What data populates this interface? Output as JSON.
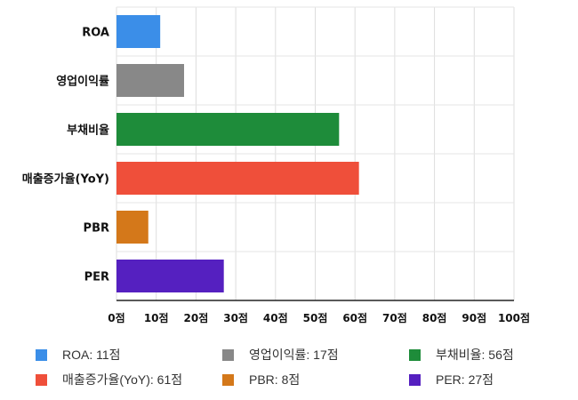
{
  "chart_data": {
    "type": "bar",
    "orientation": "horizontal",
    "categories": [
      "ROA",
      "영업이익률",
      "부채비율",
      "매출증가율(YoY)",
      "PBR",
      "PER"
    ],
    "values": [
      11,
      17,
      56,
      61,
      8,
      27
    ],
    "colors": [
      "#3b8ee8",
      "#888888",
      "#1e8c3a",
      "#ef4f3a",
      "#d4781a",
      "#5520c0"
    ],
    "xlim": [
      0,
      100
    ],
    "x_ticks": [
      "0점",
      "10점",
      "20점",
      "30점",
      "40점",
      "50점",
      "60점",
      "70점",
      "80점",
      "90점",
      "100점"
    ],
    "grid": true,
    "legend": {
      "position": "bottom",
      "entries": [
        {
          "label": "ROA: 11점",
          "color": "#3b8ee8"
        },
        {
          "label": "영업이익률: 17점",
          "color": "#888888"
        },
        {
          "label": "부채비율: 56점",
          "color": "#1e8c3a"
        },
        {
          "label": "매출증가율(YoY): 61점",
          "color": "#ef4f3a"
        },
        {
          "label": "PBR: 8점",
          "color": "#d4781a"
        },
        {
          "label": "PER: 27점",
          "color": "#5520c0"
        }
      ]
    }
  }
}
